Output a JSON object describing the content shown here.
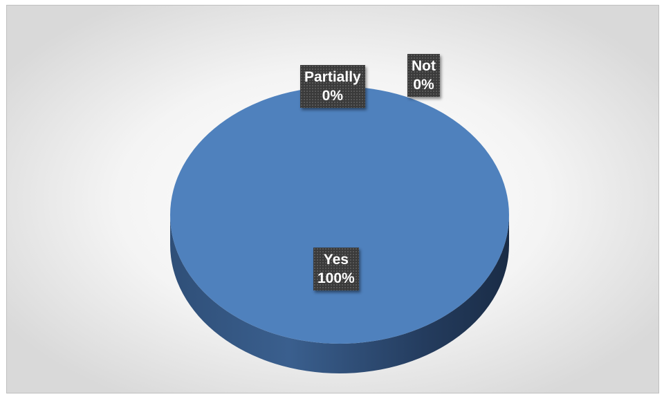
{
  "chart_data": {
    "type": "pie",
    "title": "",
    "legend": "none",
    "categories": [
      "Yes",
      "Partially",
      "Not"
    ],
    "values": [
      100,
      0,
      0
    ],
    "data_labels": [
      {
        "category": "Yes",
        "percent": "100%"
      },
      {
        "category": "Partially",
        "percent": "0%"
      },
      {
        "category": "Not",
        "percent": "0%"
      }
    ],
    "colors": {
      "slice_top": "#4f81bd",
      "slice_side_light": "#3a5f8e",
      "slice_side_dark": "#1f3350",
      "label_background": "#3a3a3a",
      "label_text": "#ffffff"
    }
  }
}
